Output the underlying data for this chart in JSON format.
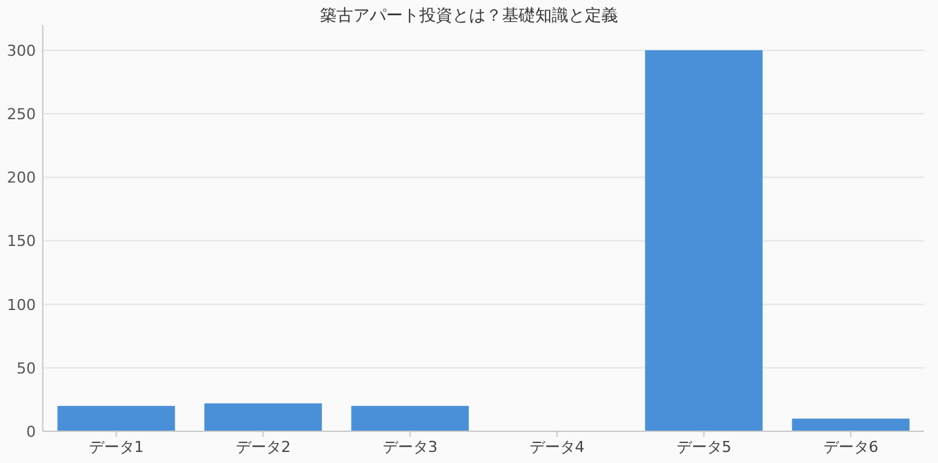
{
  "chart_data": {
    "type": "bar",
    "title": "築古アパート投資とは？基礎知識と定義",
    "categories": [
      "データ1",
      "データ2",
      "データ3",
      "データ4",
      "データ5",
      "データ6"
    ],
    "values": [
      20,
      22,
      20,
      0,
      300,
      10
    ],
    "color": "#4a90d9",
    "ylim": [
      0,
      320
    ],
    "yticks": [
      0,
      50,
      100,
      150,
      200,
      250,
      300
    ],
    "grid": "y"
  }
}
